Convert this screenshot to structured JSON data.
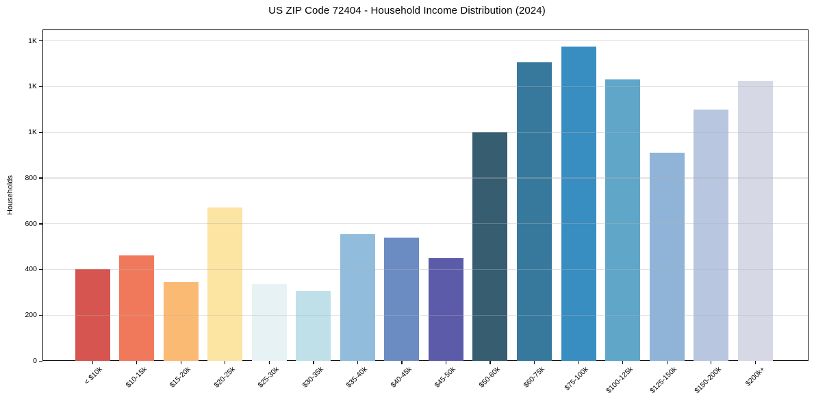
{
  "chart_data": {
    "type": "bar",
    "title": "US ZIP Code 72404 - Household Income Distribution (2024)",
    "xlabel": "",
    "ylabel": "Households",
    "categories": [
      "< $10k",
      "$10-15k",
      "$15-20k",
      "$20-25k",
      "$25-30k",
      "$30-35k",
      "$35-40k",
      "$40-45k",
      "$45-50k",
      "$50-60k",
      "$60-75k",
      "$75-100k",
      "$100-125k",
      "$125-150k",
      "$150-200k",
      "$200k+"
    ],
    "values": [
      400,
      460,
      345,
      670,
      335,
      305,
      555,
      540,
      450,
      1000,
      1305,
      1375,
      1230,
      910,
      1100,
      1225
    ],
    "bar_colors": [
      "#d65550",
      "#f0795c",
      "#fbba73",
      "#fce4a2",
      "#e7f2f4",
      "#bfe0e9",
      "#91bcdc",
      "#6b8bc3",
      "#5c5baa",
      "#365d70",
      "#37799d",
      "#388dc1",
      "#5fa6c9",
      "#8fb4d8",
      "#b8c6e0",
      "#d7d8e6"
    ],
    "ylim": [
      0,
      1450
    ],
    "yticks": [
      {
        "value": 0,
        "label": "0"
      },
      {
        "value": 200,
        "label": "200"
      },
      {
        "value": 400,
        "label": "400"
      },
      {
        "value": 600,
        "label": "600"
      },
      {
        "value": 800,
        "label": "800"
      },
      {
        "value": 1000,
        "label": "1K"
      },
      {
        "value": 1200,
        "label": "1K"
      },
      {
        "value": 1400,
        "label": "1K"
      }
    ],
    "grid": "horizontal",
    "gridline_color": "#e9e9e9",
    "legend": "none"
  }
}
